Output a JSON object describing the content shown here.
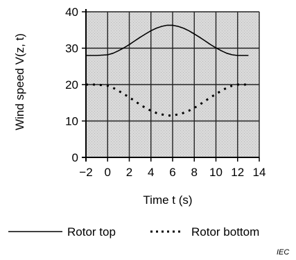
{
  "chart_data": {
    "type": "line",
    "title": "",
    "xlabel": "Time t   (s)",
    "ylabel": "Wind speed V(z, t)",
    "xlim": [
      -2,
      14
    ],
    "ylim": [
      0,
      40
    ],
    "x_ticks": [
      -2,
      0,
      2,
      4,
      6,
      8,
      10,
      12,
      14
    ],
    "y_ticks": [
      0,
      10,
      20,
      30,
      40
    ],
    "grid": true,
    "background": "#d9d9d9",
    "legend": {
      "placement": "below-plot"
    },
    "series": [
      {
        "name": "Rotor top",
        "style": "solid",
        "color": "#000000",
        "x": [
          -2,
          -1,
          0,
          0.5,
          1,
          1.5,
          2,
          2.5,
          3,
          3.5,
          4,
          4.5,
          5,
          5.5,
          6,
          6.5,
          7,
          7.5,
          8,
          8.5,
          9,
          9.5,
          10,
          10.5,
          11,
          11.5,
          12,
          13
        ],
        "y": [
          28,
          28,
          28.2,
          28.6,
          29.3,
          30.1,
          31,
          32,
          33,
          33.9,
          34.8,
          35.5,
          36,
          36.3,
          36.3,
          36,
          35.5,
          34.8,
          33.9,
          33,
          32,
          31,
          30.1,
          29.3,
          28.6,
          28.2,
          28,
          28
        ]
      },
      {
        "name": "Rotor bottom",
        "style": "dotted",
        "color": "#000000",
        "x": [
          -2,
          -1,
          0,
          0.5,
          1,
          1.5,
          2,
          2.5,
          3,
          3.5,
          4,
          4.5,
          5,
          5.5,
          6,
          6.5,
          7,
          7.5,
          8,
          8.5,
          9,
          9.5,
          10,
          10.5,
          11,
          11.5,
          12,
          13
        ],
        "y": [
          20,
          20,
          19.7,
          19.1,
          18.3,
          17.4,
          16.5,
          15.5,
          14.5,
          13.6,
          12.8,
          12.2,
          11.8,
          11.5,
          11.5,
          11.8,
          12.2,
          12.8,
          13.6,
          14.5,
          15.5,
          16.5,
          17.4,
          18.3,
          19.1,
          19.7,
          20,
          20
        ]
      }
    ],
    "watermark": "IEC"
  }
}
